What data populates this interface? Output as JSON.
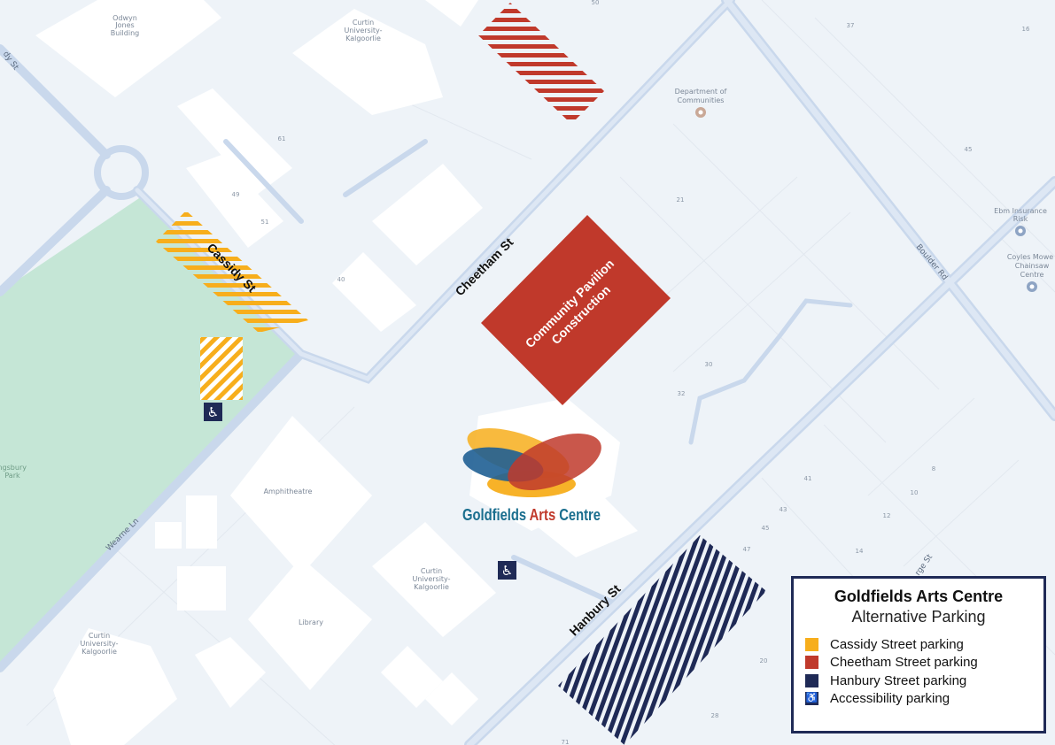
{
  "map": {
    "streets": {
      "cassidy": "Cassidy St",
      "cassidy_top": "dy St",
      "cheetham": "Cheetham St",
      "hanbury": "Hanbury St",
      "boulder": "Boulder Rd",
      "wearne": "Wearne Ln",
      "george": "rge St"
    },
    "places": {
      "odwyn": [
        "Odwyn",
        "Jones",
        "Building"
      ],
      "curtin_top": [
        "Curtin",
        "University-",
        "Kalgoorlie"
      ],
      "communities": [
        "Department of",
        "Communities"
      ],
      "ebm": [
        "Ebm Insurance",
        "Risk"
      ],
      "coyles": [
        "Coyles Mowe",
        "Chainsaw",
        "Centre"
      ],
      "amphitheatre": "Amphitheatre",
      "curtin_mid": [
        "Curtin",
        "University-",
        "Kalgoorlie"
      ],
      "library": "Library",
      "curtin_left": [
        "Curtin",
        "University-",
        "Kalgoorlie"
      ],
      "park": [
        "Kingsbury",
        "Park"
      ]
    },
    "house_numbers": [
      "50",
      "37",
      "16",
      "61",
      "49",
      "51",
      "40",
      "21",
      "45",
      "30",
      "32",
      "41",
      "43",
      "45",
      "47",
      "8",
      "10",
      "12",
      "14",
      "20",
      "28",
      "71"
    ],
    "construction": [
      "Community Pavilion",
      "Construction"
    ],
    "logo": {
      "word1": "Goldfields",
      "word2": "Arts",
      "word3": "Centre"
    },
    "icons": {
      "accessibility": "wheelchair-icon",
      "poi": "map-pin-icon"
    }
  },
  "legend": {
    "title": "Goldfields Arts Centre",
    "subtitle": "Alternative Parking",
    "items": [
      {
        "label": "Cassidy Street parking",
        "color": "#f7ae1c"
      },
      {
        "label": "Cheetham Street parking",
        "color": "#c0392b"
      },
      {
        "label": "Hanbury Street parking",
        "color": "#1f2a56"
      },
      {
        "label": "Accessibility parking",
        "color": "#1f2a56",
        "icon": "wheelchair-icon"
      }
    ]
  },
  "colors": {
    "park": "#c5e6d6",
    "background": "#eef3f8",
    "road": "#c9d8ec",
    "construction": "#c0392b"
  }
}
